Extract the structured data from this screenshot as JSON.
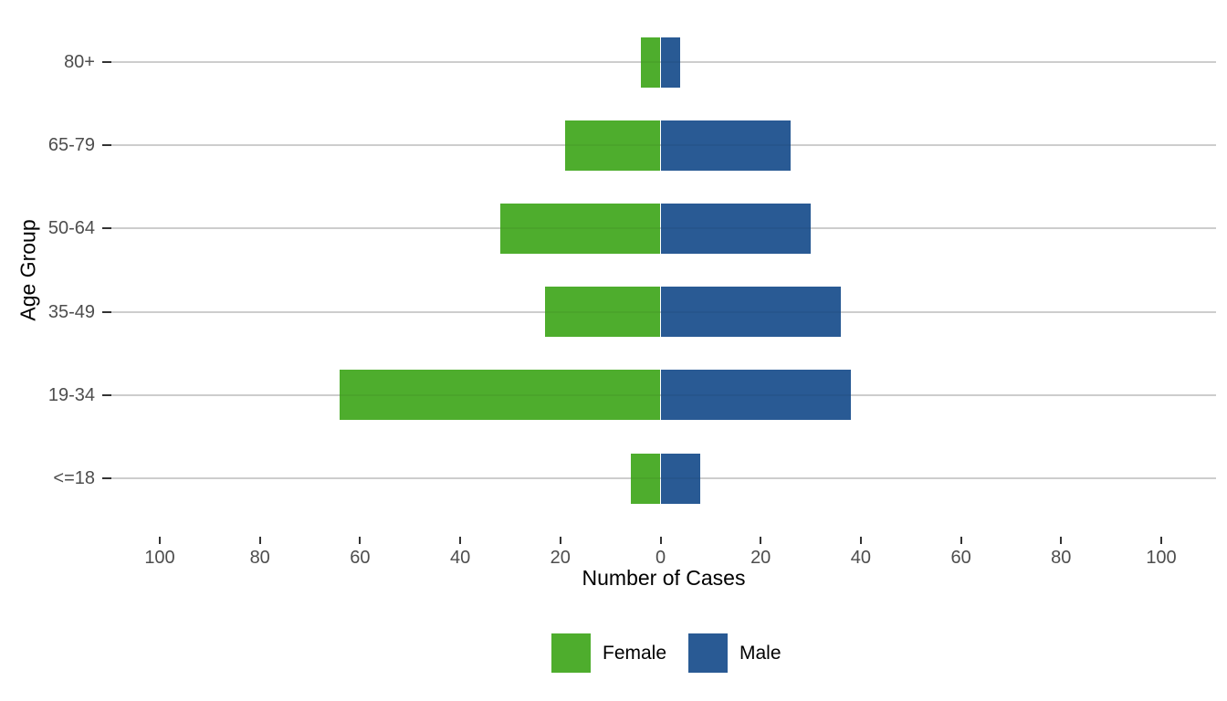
{
  "figure": {
    "x_axis_title": "Number of Cases",
    "y_axis_title": "Age Group",
    "legend": {
      "female_label": "Female",
      "male_label": "Male"
    }
  },
  "colors": {
    "female": "#4ead2d",
    "male": "#295a94",
    "gridline": "#d9d9d9",
    "tick_mark": "#333333",
    "tick_text": "#4d4d4d",
    "title_text": "#000000"
  },
  "chart_data": {
    "type": "bar",
    "subtype": "horizontal-diverging-pyramid",
    "title": "",
    "xlabel": "Number of Cases",
    "ylabel": "Age Group",
    "categories_top_to_bottom": [
      "80+",
      "65-79",
      "50-64",
      "35-49",
      "19-34",
      "<=18"
    ],
    "series": [
      {
        "name": "Female",
        "side": "left",
        "color": "#4ead2d",
        "values": [
          4,
          19,
          32,
          23,
          64,
          6
        ]
      },
      {
        "name": "Male",
        "side": "right",
        "color": "#295a94",
        "values": [
          4,
          26,
          30,
          36,
          38,
          8
        ]
      }
    ],
    "xlim": [
      -110,
      110
    ],
    "xticks": [
      -100,
      -80,
      -60,
      -40,
      -20,
      0,
      20,
      40,
      60,
      80,
      100
    ],
    "xtick_labels": [
      "100",
      "80",
      "60",
      "40",
      "20",
      "0",
      "20",
      "40",
      "60",
      "80",
      "100"
    ],
    "grid": "horizontal-major-only",
    "legend_position": "bottom-center",
    "bar_width_fraction": 0.6
  }
}
